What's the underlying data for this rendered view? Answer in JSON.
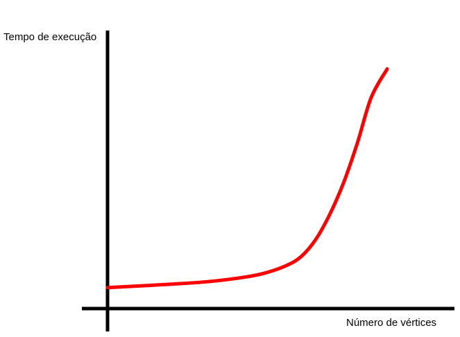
{
  "chart_data": {
    "type": "line",
    "title": "",
    "ylabel": "Tempo de execução",
    "xlabel": "Número de vértices",
    "grid": false,
    "ticks": "none",
    "series": [
      {
        "color": "#ff0000",
        "x": [
          0,
          50,
          100,
          150,
          200,
          230,
          260,
          280,
          300,
          320,
          340,
          360,
          380,
          403
        ],
        "y": [
          0,
          3,
          6,
          10,
          17,
          24,
          36,
          50,
          76,
          115,
          165,
          228,
          300,
          345
        ]
      }
    ],
    "xlim": [
      0,
      403
    ],
    "ylim": [
      -33,
      375
    ],
    "axis_color": "#000000"
  }
}
